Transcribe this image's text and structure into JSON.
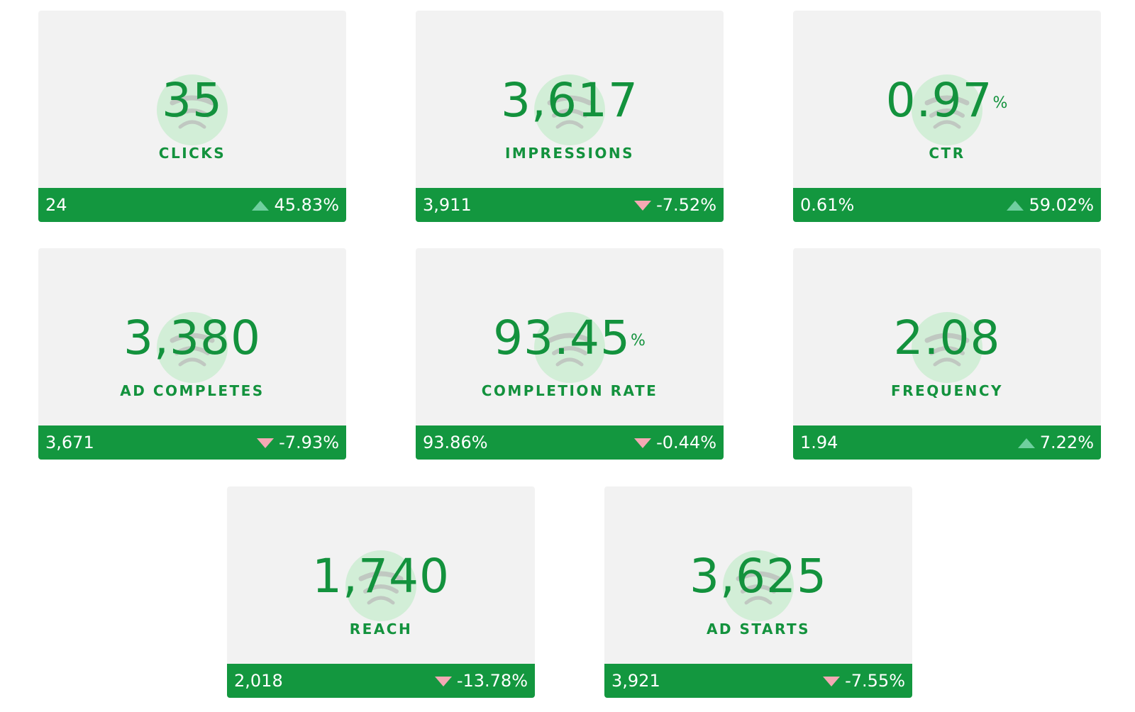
{
  "cards": [
    {
      "value": "35",
      "label": "CLICKS",
      "previous": "24",
      "change": "45.83%",
      "direction": "up"
    },
    {
      "value": "3,617",
      "label": "IMPRESSIONS",
      "previous": "3,911",
      "change": "-7.52%",
      "direction": "down"
    },
    {
      "value": "0.97",
      "suffix": "%",
      "label": "CTR",
      "previous": "0.61%",
      "change": "59.02%",
      "direction": "up"
    },
    {
      "value": "3,380",
      "label": "AD COMPLETES",
      "previous": "3,671",
      "change": "-7.93%",
      "direction": "down"
    },
    {
      "value": "93.45",
      "suffix": "%",
      "label": "COMPLETION RATE",
      "previous": "93.86%",
      "change": "-0.44%",
      "direction": "down"
    },
    {
      "value": "2.08",
      "label": "FREQUENCY",
      "previous": "1.94",
      "change": "7.22%",
      "direction": "up"
    },
    {
      "value": "1,740",
      "label": "REACH",
      "previous": "2,018",
      "change": "-13.78%",
      "direction": "down"
    },
    {
      "value": "3,625",
      "label": "AD STARTS",
      "previous": "3,921",
      "change": "-7.55%",
      "direction": "down"
    }
  ]
}
